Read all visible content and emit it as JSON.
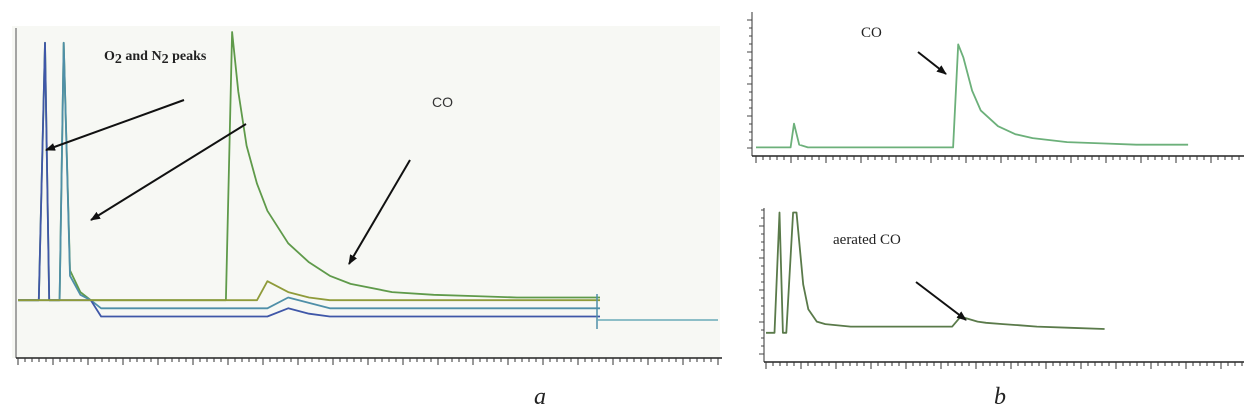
{
  "chart_data": [
    {
      "type": "line",
      "panel": "a",
      "panel_label": "a",
      "title": "",
      "xlabel": "",
      "ylabel": "",
      "grid": false,
      "annotations": [
        {
          "text_main": "O",
          "text_sub1": "2",
          "text_mid": " and N",
          "text_sub2": "2",
          "text_end": " peaks"
        },
        {
          "text": "CO"
        }
      ],
      "xlim": [
        0,
        28
      ],
      "ylim": [
        -10,
        100
      ],
      "x": [
        0,
        0.6,
        1.0,
        1.3,
        1.5,
        2.0,
        2.2,
        2.5,
        3.0,
        3.5,
        4.0,
        5.0,
        8.0,
        10.0,
        10.3,
        10.6,
        11.0,
        11.5,
        12.0,
        13.0,
        14.0,
        15.0,
        16.0,
        18.0,
        20.0,
        22.0,
        24.0,
        26.0,
        28.0
      ],
      "series": [
        {
          "color": "#5f9a4a",
          "values": [
            1,
            1,
            1,
            96,
            1,
            1,
            96,
            12,
            4,
            1,
            1,
            1,
            1,
            1,
            100,
            78,
            58,
            44,
            34,
            22,
            15,
            10,
            7,
            4,
            3,
            2.5,
            2,
            2,
            2
          ]
        },
        {
          "color": "#4f8fa8",
          "values": [
            1,
            1,
            1,
            1,
            1,
            1,
            96,
            10,
            3,
            1,
            -2,
            -2,
            -2,
            -2,
            -2,
            -2,
            -2,
            -2,
            -2,
            2,
            0,
            -2,
            -2,
            -2,
            -2,
            -2,
            -2,
            -2,
            -2
          ]
        },
        {
          "color": "#3f57a8",
          "values": [
            1,
            1,
            1,
            96,
            1,
            1,
            1,
            1,
            1,
            1,
            -5,
            -5,
            -5,
            -5,
            -5,
            -5,
            -5,
            -5,
            -5,
            -2,
            -4,
            -5,
            -5,
            -5,
            -5,
            -5,
            -5,
            -5,
            -5
          ]
        },
        {
          "color": "#8f9b3a",
          "values": [
            1,
            1,
            1,
            1,
            1,
            1,
            1,
            1,
            1,
            1,
            1,
            1,
            1,
            1,
            1,
            1,
            1,
            1,
            8,
            4,
            2,
            1,
            1,
            1,
            1,
            1,
            1,
            1,
            1
          ]
        }
      ]
    },
    {
      "type": "line",
      "panel": "b-top",
      "panel_label": "b",
      "title": "",
      "xlabel": "",
      "ylabel": "",
      "grid": false,
      "annotations": [
        {
          "text": "CO"
        }
      ],
      "xlim": [
        0,
        28
      ],
      "ylim": [
        0,
        100
      ],
      "x": [
        0,
        1.0,
        1.5,
        2.0,
        2.2,
        2.5,
        3.0,
        5.0,
        9.0,
        11.0,
        11.4,
        11.7,
        12.0,
        12.5,
        13.0,
        14.0,
        15.0,
        16.0,
        18.0,
        20.0,
        22.0,
        25.0
      ],
      "series": [
        {
          "color": "#6cb07a",
          "values": [
            2,
            2,
            2,
            2,
            20,
            4,
            2,
            2,
            2,
            2,
            2,
            80,
            70,
            45,
            30,
            18,
            12,
            9,
            6,
            5,
            4,
            4
          ]
        }
      ]
    },
    {
      "type": "line",
      "panel": "b-bottom",
      "panel_label": "b",
      "title": "",
      "xlabel": "",
      "ylabel": "",
      "grid": false,
      "annotations": [
        {
          "text": "aerated CO"
        }
      ],
      "xlim": [
        0,
        28
      ],
      "ylim": [
        0,
        100
      ],
      "x": [
        0,
        0.5,
        0.8,
        1.0,
        1.2,
        1.6,
        1.8,
        2.2,
        2.5,
        3.0,
        3.5,
        5.0,
        8.0,
        11.0,
        11.5,
        12.0,
        12.5,
        13.0,
        14.0,
        15.0,
        16.0,
        18.0,
        20.0
      ],
      "series": [
        {
          "color": "#5a7a4a",
          "values": [
            1,
            1,
            98,
            1,
            1,
            98,
            98,
            40,
            20,
            10,
            8,
            6,
            6,
            6,
            14,
            12,
            10,
            9,
            8,
            7,
            6,
            5,
            4
          ]
        }
      ]
    }
  ]
}
